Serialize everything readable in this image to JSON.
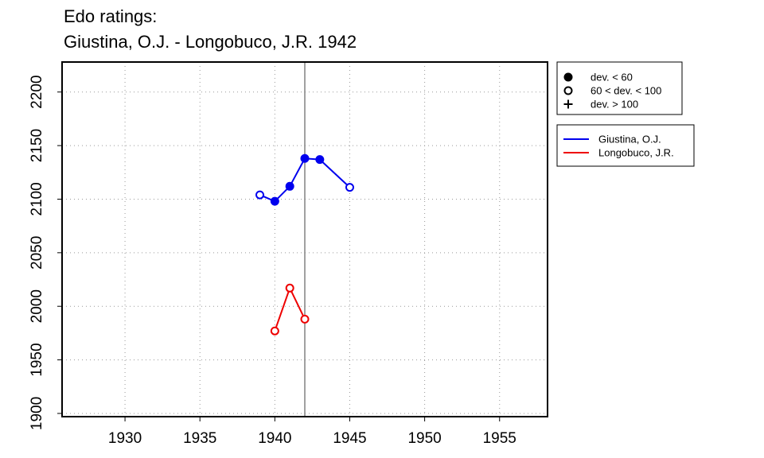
{
  "chart_data": {
    "type": "line",
    "title": "Edo ratings:",
    "subtitle": "Giustina, O.J. - Longobuco, J.R. 1942",
    "xlabel": "",
    "ylabel": "",
    "xlim": [
      1925.8,
      1958.2
    ],
    "ylim": [
      1897,
      2228
    ],
    "xticks": [
      1930,
      1935,
      1940,
      1945,
      1950,
      1955
    ],
    "yticks": [
      1900,
      1950,
      2000,
      2050,
      2100,
      2150,
      2200
    ],
    "grid": true,
    "vline_x": 1942,
    "symbol_legend": {
      "position": "top-right",
      "entries": [
        {
          "marker": "filled",
          "label": "dev. < 60"
        },
        {
          "marker": "open",
          "label": "60 < dev. < 100"
        },
        {
          "marker": "plus",
          "label": "dev. > 100"
        }
      ]
    },
    "series_legend_position": "right",
    "series": [
      {
        "name": "Giustina, O.J.",
        "color": "#0000ee",
        "points": [
          {
            "x": 1939,
            "y": 2104,
            "marker": "open"
          },
          {
            "x": 1940,
            "y": 2098,
            "marker": "filled"
          },
          {
            "x": 1941,
            "y": 2112,
            "marker": "filled"
          },
          {
            "x": 1942,
            "y": 2138,
            "marker": "filled"
          },
          {
            "x": 1943,
            "y": 2137,
            "marker": "filled"
          },
          {
            "x": 1945,
            "y": 2111,
            "marker": "open"
          }
        ]
      },
      {
        "name": "Longobuco, J.R.",
        "color": "#ee0000",
        "points": [
          {
            "x": 1940,
            "y": 1977,
            "marker": "open"
          },
          {
            "x": 1941,
            "y": 2017,
            "marker": "open"
          },
          {
            "x": 1942,
            "y": 1988,
            "marker": "open"
          }
        ]
      }
    ]
  }
}
